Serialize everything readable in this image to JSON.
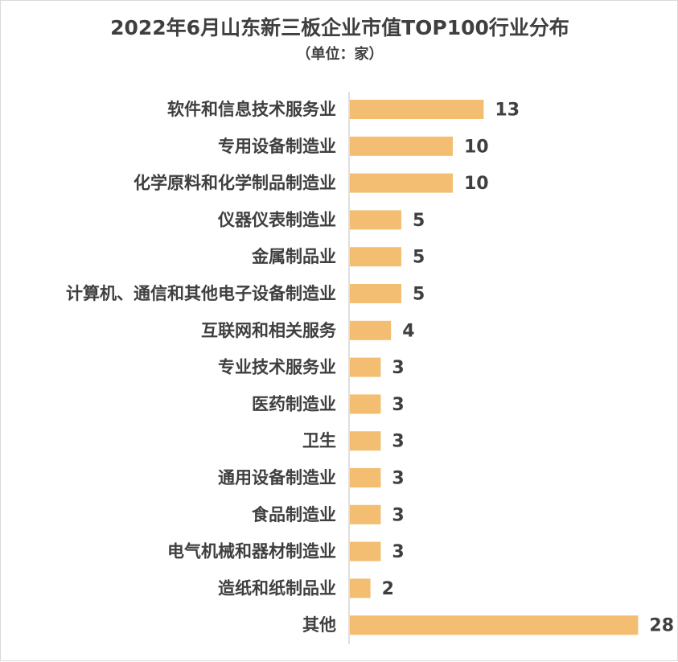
{
  "chart_data": {
    "type": "bar",
    "orientation": "horizontal",
    "title": "2022年6月山东新三板企业市值TOP100行业分布",
    "subtitle": "（单位：家）",
    "categories": [
      "软件和信息技术服务业",
      "专用设备制造业",
      "化学原料和化学制品制造业",
      "仪器仪表制造业",
      "金属制品业",
      "计算机、通信和其他电子设备制造业",
      "互联网和相关服务",
      "专业技术服务业",
      "医药制造业",
      "卫生",
      "通用设备制造业",
      "食品制造业",
      "电气机械和器材制造业",
      "造纸和纸制品业",
      "其他"
    ],
    "values": [
      13,
      10,
      10,
      5,
      5,
      5,
      4,
      3,
      3,
      3,
      3,
      3,
      3,
      2,
      28
    ],
    "bar_color": "#f3bd72",
    "data_labels": true,
    "grid": false,
    "legend": "none"
  }
}
